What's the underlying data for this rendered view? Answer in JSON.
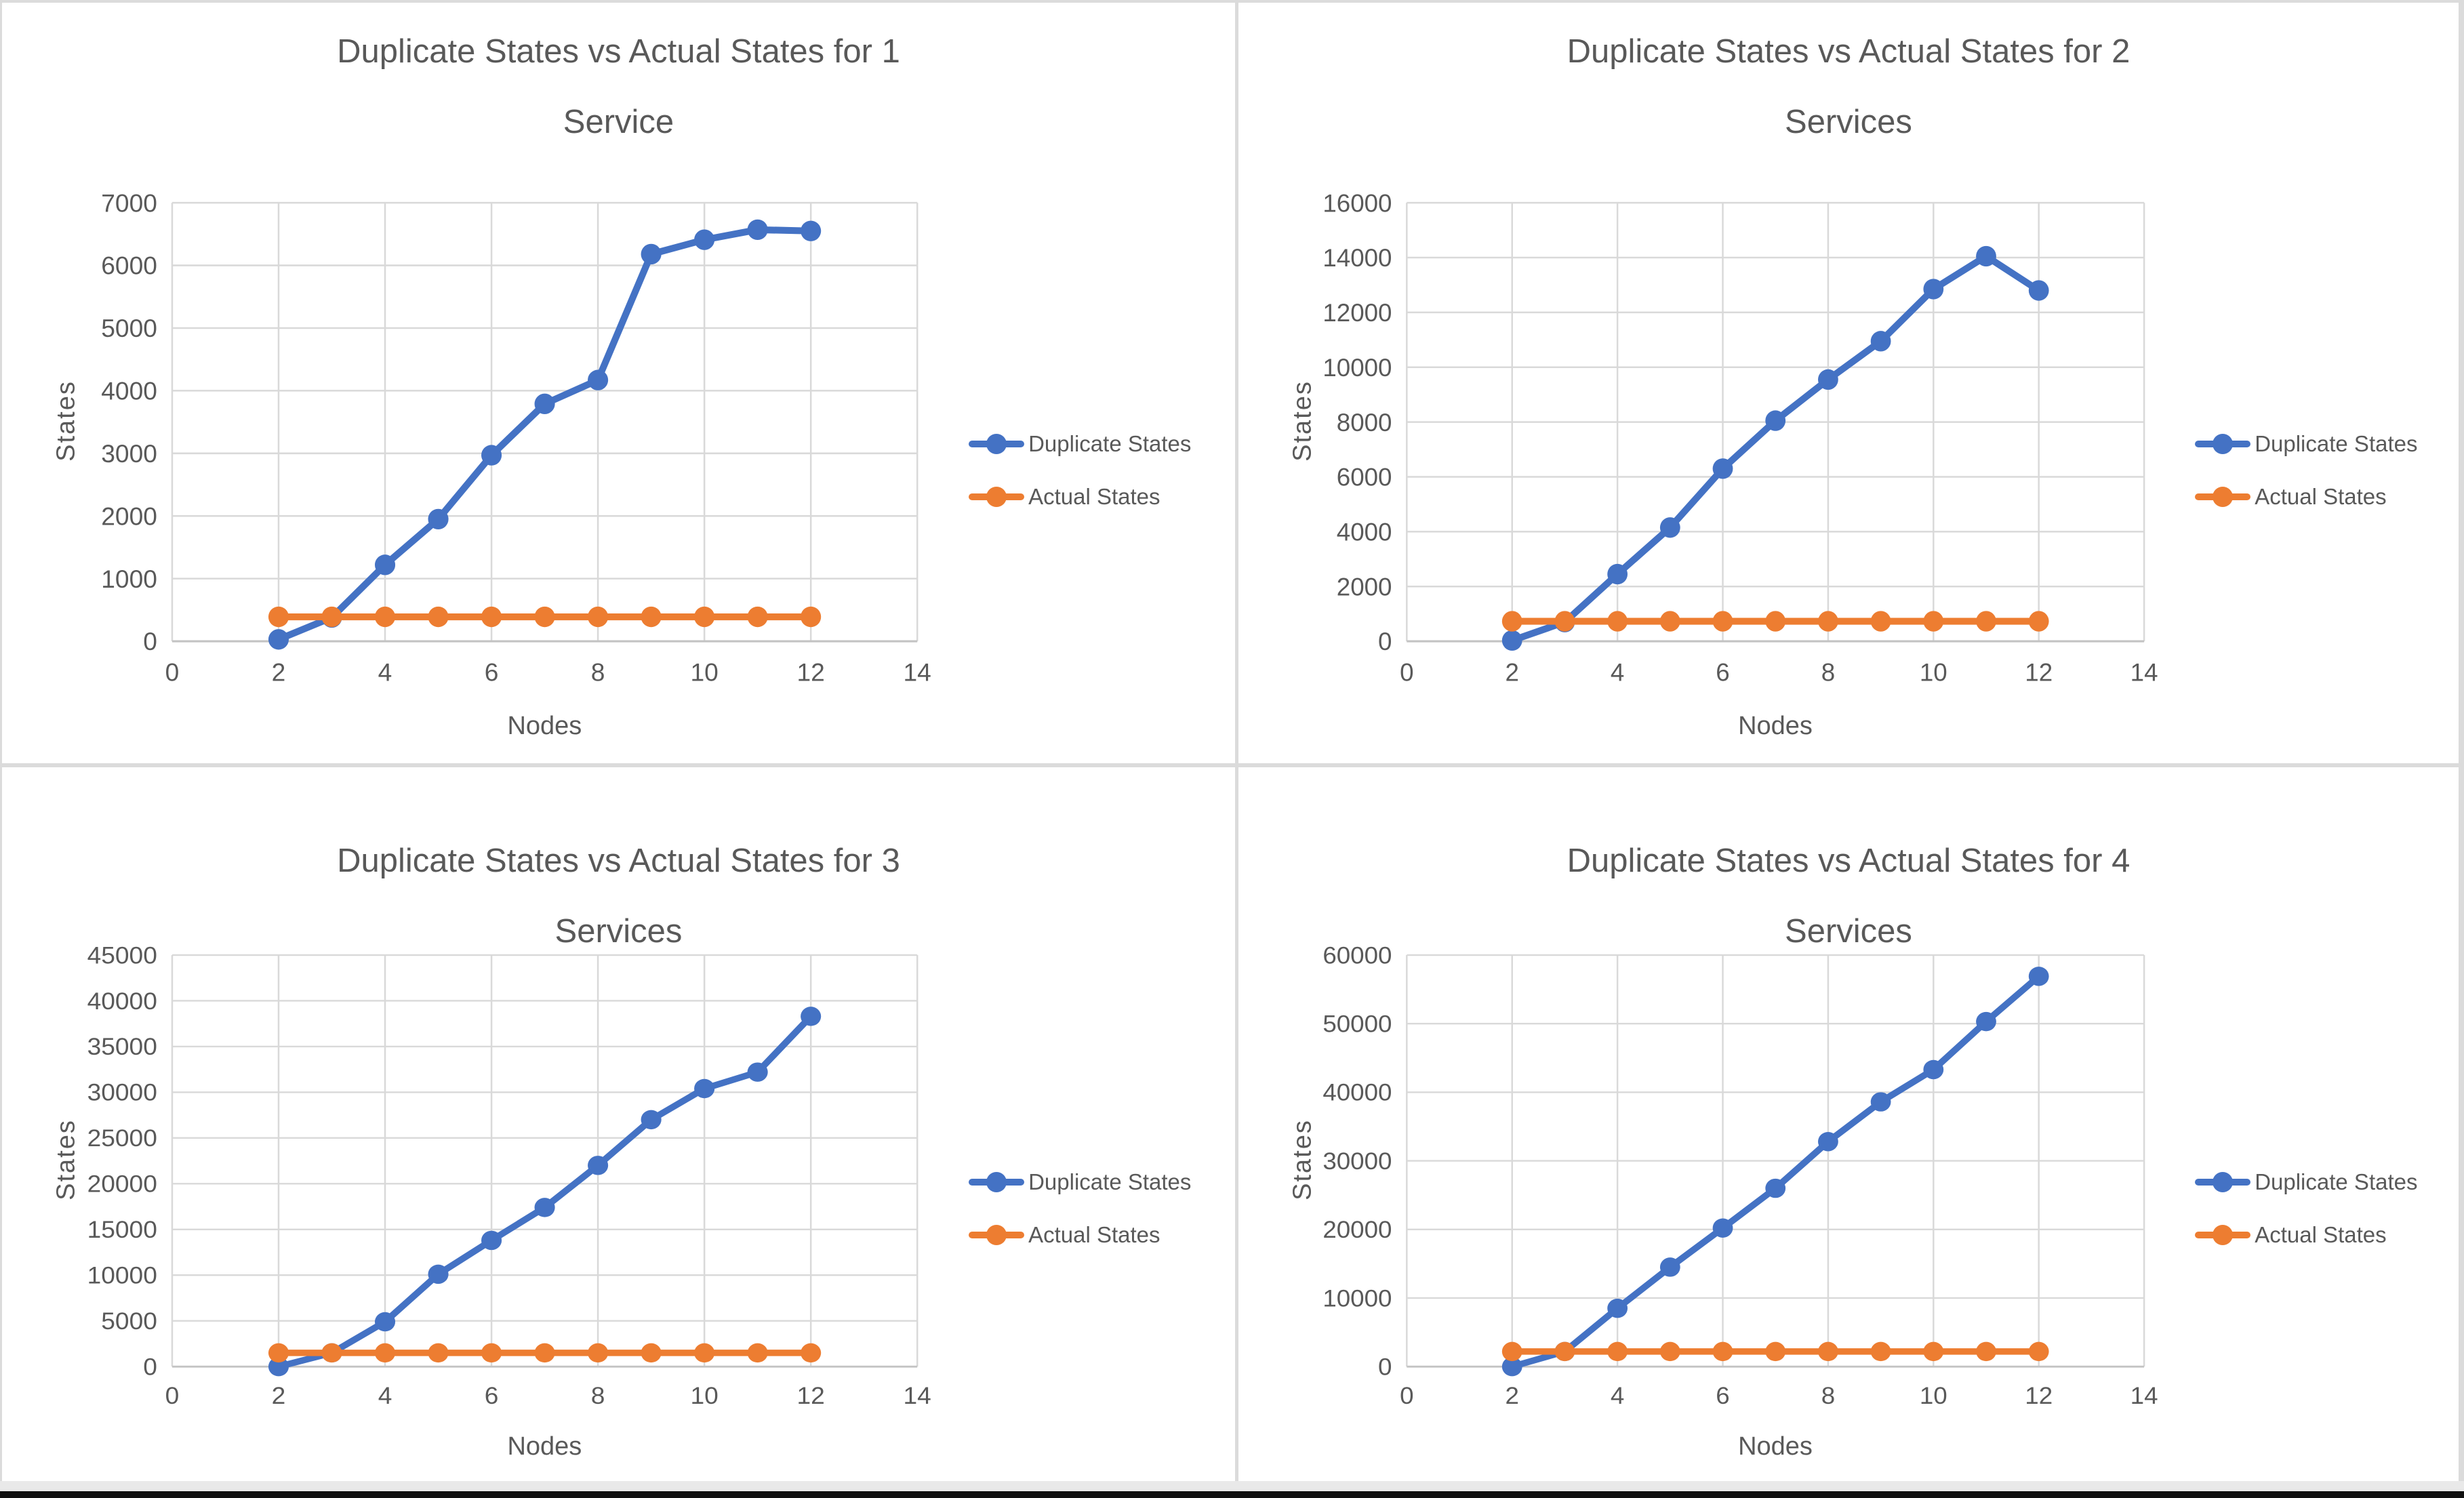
{
  "page": {
    "background": "#FFFFFF",
    "divider_color": "#DBDBDB",
    "bottom_strip_color": "#E9E9E9",
    "bottom_edge_color": "#101010"
  },
  "colors": {
    "duplicate_series": "#4472C4",
    "actual_series": "#ED7D31",
    "gridline": "#D9D9D9",
    "axis_line": "#C3C3C3",
    "text": "#595959"
  },
  "chart_data": [
    {
      "type": "line",
      "title": "Duplicate States vs Actual States for 1 Service",
      "title_lines": [
        "Duplicate States vs Actual States for 1",
        "Service"
      ],
      "xlabel": "Nodes",
      "ylabel": "States",
      "x": [
        2,
        3,
        4,
        5,
        6,
        7,
        8,
        9,
        10,
        11,
        12
      ],
      "xlim": [
        0,
        14
      ],
      "xtick_step": 2,
      "ylim": [
        0,
        7000
      ],
      "ytick_step": 1000,
      "grid": true,
      "legend_position": "right",
      "series": [
        {
          "name": "Duplicate States",
          "color": "#4472C4",
          "values": [
            30,
            380,
            1220,
            1950,
            2970,
            3790,
            4170,
            6180,
            6410,
            6570,
            6550
          ]
        },
        {
          "name": "Actual States",
          "color": "#ED7D31",
          "values": [
            390,
            390,
            390,
            390,
            390,
            390,
            390,
            390,
            390,
            390,
            390
          ]
        }
      ]
    },
    {
      "type": "line",
      "title": "Duplicate States vs Actual States for 2 Services",
      "title_lines": [
        "Duplicate States vs Actual States for 2",
        "Services"
      ],
      "xlabel": "Nodes",
      "ylabel": "States",
      "x": [
        2,
        3,
        4,
        5,
        6,
        7,
        8,
        9,
        10,
        11,
        12
      ],
      "xlim": [
        0,
        14
      ],
      "xtick_step": 2,
      "ylim": [
        0,
        16000
      ],
      "ytick_step": 2000,
      "grid": true,
      "legend_position": "right",
      "series": [
        {
          "name": "Duplicate States",
          "color": "#4472C4",
          "values": [
            30,
            700,
            2450,
            4150,
            6300,
            8050,
            9550,
            10950,
            12850,
            14050,
            12800
          ]
        },
        {
          "name": "Actual States",
          "color": "#ED7D31",
          "values": [
            730,
            730,
            730,
            730,
            730,
            730,
            730,
            730,
            730,
            730,
            730
          ]
        }
      ]
    },
    {
      "type": "line",
      "title": "Duplicate States vs Actual States for 3 Services",
      "title_lines": [
        "Duplicate States vs Actual States for 3",
        "Services"
      ],
      "xlabel": "Nodes",
      "ylabel": "States",
      "x": [
        2,
        3,
        4,
        5,
        6,
        7,
        8,
        9,
        10,
        11,
        12
      ],
      "xlim": [
        0,
        14
      ],
      "xtick_step": 2,
      "ylim": [
        0,
        45000
      ],
      "ytick_step": 5000,
      "grid": true,
      "legend_position": "right",
      "series": [
        {
          "name": "Duplicate States",
          "color": "#4472C4",
          "values": [
            0,
            1500,
            4900,
            10100,
            13800,
            17400,
            22000,
            27000,
            30400,
            32200,
            38300
          ]
        },
        {
          "name": "Actual States",
          "color": "#ED7D31",
          "values": [
            1500,
            1500,
            1500,
            1500,
            1500,
            1500,
            1500,
            1500,
            1500,
            1500,
            1500
          ]
        }
      ]
    },
    {
      "type": "line",
      "title": "Duplicate States vs Actual States for 4 Services",
      "title_lines": [
        "Duplicate States vs Actual States for 4",
        "Services"
      ],
      "xlabel": "Nodes",
      "ylabel": "States",
      "x": [
        2,
        3,
        4,
        5,
        6,
        7,
        8,
        9,
        10,
        11,
        12
      ],
      "xlim": [
        0,
        14
      ],
      "xtick_step": 2,
      "ylim": [
        0,
        60000
      ],
      "ytick_step": 10000,
      "grid": true,
      "legend_position": "right",
      "series": [
        {
          "name": "Duplicate States",
          "color": "#4472C4",
          "values": [
            0,
            2200,
            8500,
            14500,
            20200,
            26000,
            32800,
            38600,
            43300,
            50300,
            56900
          ]
        },
        {
          "name": "Actual States",
          "color": "#ED7D31",
          "values": [
            2200,
            2200,
            2200,
            2200,
            2200,
            2200,
            2200,
            2200,
            2200,
            2200,
            2200
          ]
        }
      ]
    }
  ]
}
